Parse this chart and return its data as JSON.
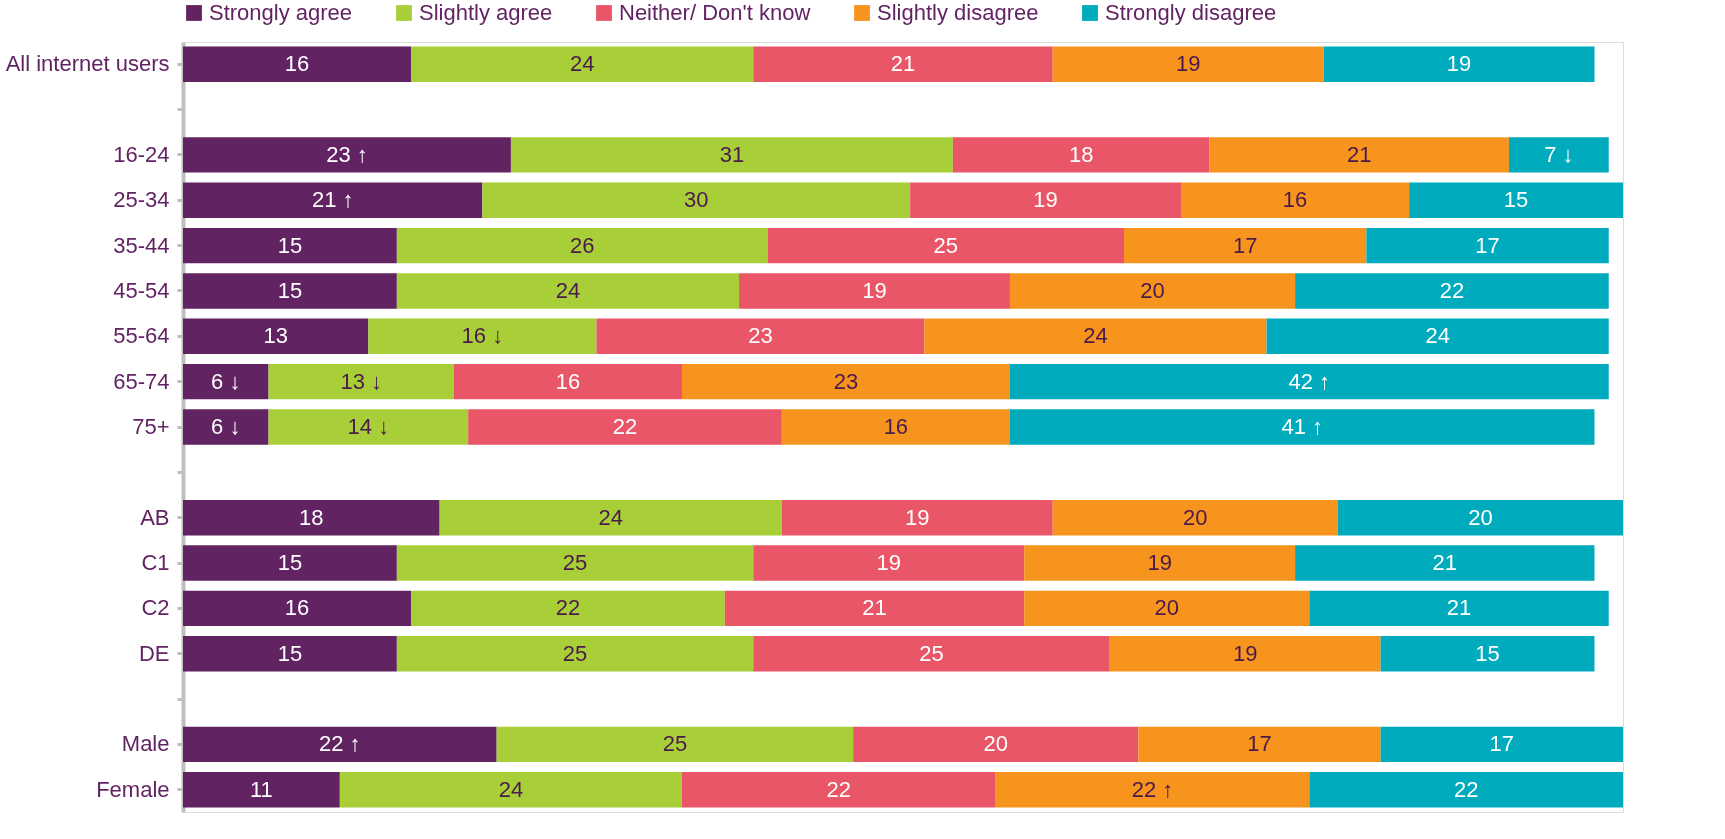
{
  "chart_data": {
    "type": "bar",
    "orientation": "horizontal",
    "stacked": true,
    "legend": "top",
    "grid": false,
    "categories": [
      "All internet users",
      null,
      "16-24",
      "25-34",
      "35-44",
      "45-54",
      "55-64",
      "65-74",
      "75+",
      null,
      "AB",
      "C1",
      "C2",
      "DE",
      null,
      "Male",
      "Female"
    ],
    "series": [
      {
        "name": "Strongly agree",
        "color": "#622363",
        "values": [
          16,
          null,
          23,
          21,
          15,
          15,
          13,
          6,
          6,
          null,
          18,
          15,
          16,
          15,
          null,
          22,
          11
        ],
        "value_labels": [
          "16",
          null,
          "23 ↑",
          "21 ↑",
          "15",
          "15",
          "13",
          "6 ↓",
          "6 ↓",
          null,
          "18",
          "15",
          "16",
          "15",
          null,
          "22 ↑",
          "11"
        ]
      },
      {
        "name": "Slightly agree",
        "color": "#a8cf38",
        "values": [
          24,
          null,
          31,
          30,
          26,
          24,
          16,
          13,
          14,
          null,
          24,
          25,
          22,
          25,
          null,
          25,
          24
        ],
        "value_labels": [
          "24",
          null,
          "31",
          "30",
          "26",
          "24",
          "16 ↓",
          "13 ↓",
          "14 ↓",
          null,
          "24",
          "25",
          "22",
          "25",
          null,
          "25",
          "24"
        ]
      },
      {
        "name": "Neither/ Don't know",
        "color": "#e85668",
        "values": [
          21,
          null,
          18,
          19,
          25,
          19,
          23,
          16,
          22,
          null,
          19,
          19,
          21,
          25,
          null,
          20,
          22
        ],
        "value_labels": [
          "21",
          null,
          "18",
          "19",
          "25",
          "19",
          "23",
          "16",
          "22",
          null,
          "19",
          "19",
          "21",
          "25",
          null,
          "20",
          "22"
        ]
      },
      {
        "name": "Slightly disagree",
        "color": "#f7941d",
        "values": [
          19,
          null,
          21,
          16,
          17,
          20,
          24,
          23,
          16,
          null,
          20,
          19,
          20,
          19,
          null,
          17,
          22
        ],
        "value_labels": [
          "19",
          null,
          "21",
          "16",
          "17",
          "20",
          "24",
          "23",
          "16",
          null,
          "20",
          "19",
          "20",
          "19",
          null,
          "17",
          "22 ↑"
        ]
      },
      {
        "name": "Strongly disagree",
        "color": "#00abbd",
        "values": [
          19,
          null,
          7,
          15,
          17,
          22,
          24,
          42,
          41,
          null,
          20,
          21,
          21,
          15,
          null,
          17,
          22
        ],
        "value_labels": [
          "19",
          null,
          "7 ↓",
          "15",
          "17",
          "22",
          "24",
          "42 ↑",
          "41 ↑",
          null,
          "20",
          "21",
          "21",
          "15",
          null,
          "17",
          "22"
        ]
      }
    ]
  }
}
